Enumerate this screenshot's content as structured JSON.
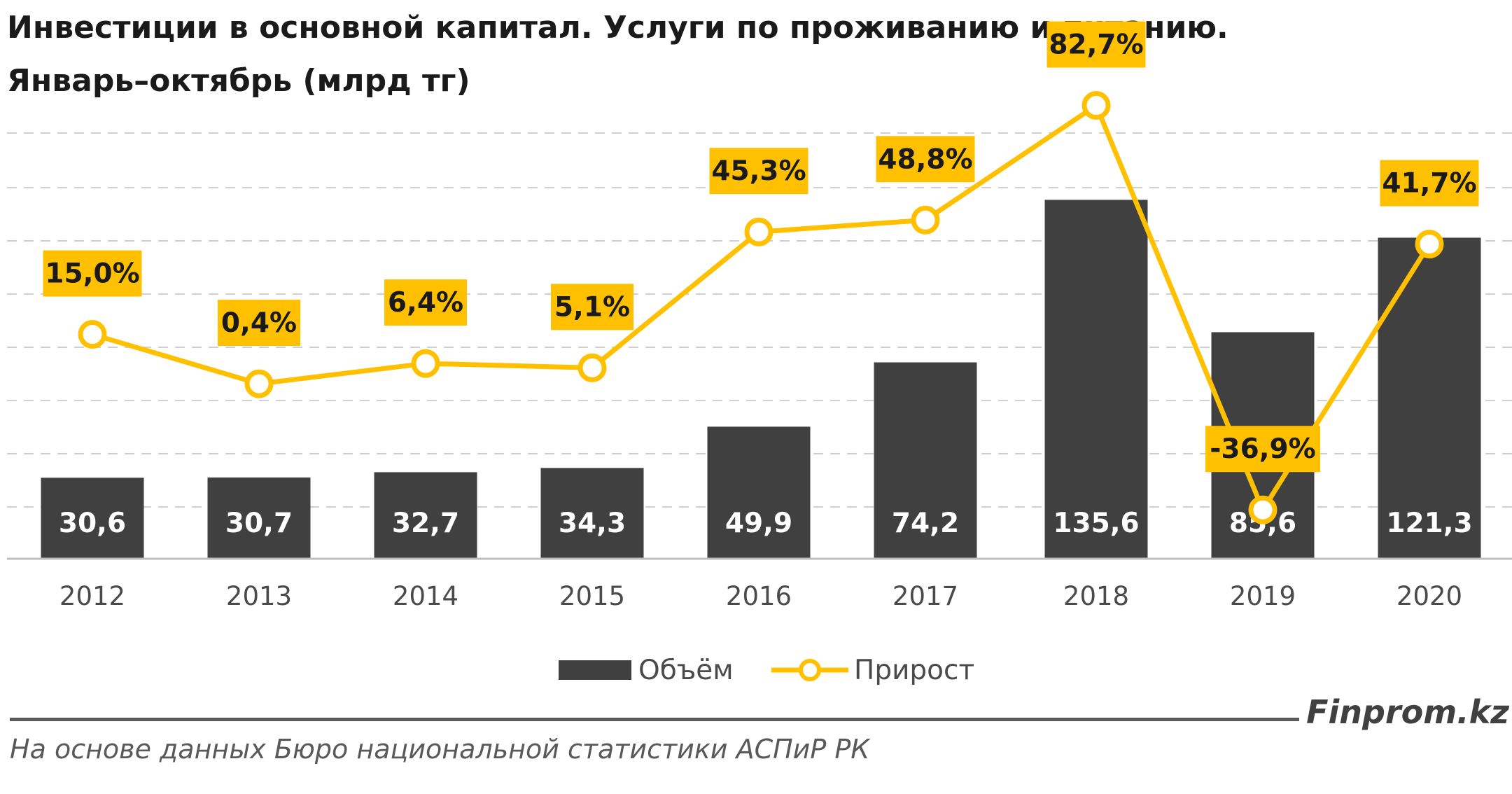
{
  "header": {
    "title_line1": "Инвестиции в основной капитал. Услуги по проживанию и питанию.",
    "title_line2": "Январь–октябрь (млрд тг)"
  },
  "chart_data": {
    "type": "bar",
    "categories": [
      "2012",
      "2013",
      "2014",
      "2015",
      "2016",
      "2017",
      "2018",
      "2019",
      "2020"
    ],
    "series": [
      {
        "name": "Объём",
        "type": "bar",
        "values": [
          30.6,
          30.7,
          32.7,
          34.3,
          49.9,
          74.2,
          135.6,
          85.6,
          121.3
        ],
        "labels": [
          "30,6",
          "30,7",
          "32,7",
          "34,3",
          "49,9",
          "74,2",
          "135,6",
          "85,6",
          "121,3"
        ],
        "color": "#404040"
      },
      {
        "name": "Прирост",
        "type": "line",
        "values": [
          15.0,
          0.4,
          6.4,
          5.1,
          45.3,
          48.8,
          82.7,
          -36.9,
          41.7
        ],
        "labels": [
          "15,0%",
          "0,4%",
          "6,4%",
          "5,1%",
          "45,3%",
          "48,8%",
          "82,7%",
          "-36,9%",
          "41,7%"
        ],
        "color": "#FFC000"
      }
    ],
    "grid": true,
    "legend_position": "bottom"
  },
  "footer": {
    "brand": "Finprom.kz",
    "source": "На основе данных Бюро национальной статистики АСПиР РК"
  },
  "colors": {
    "bar": "#404040",
    "line": "#FFC000",
    "grid": "#d0d0d0"
  }
}
